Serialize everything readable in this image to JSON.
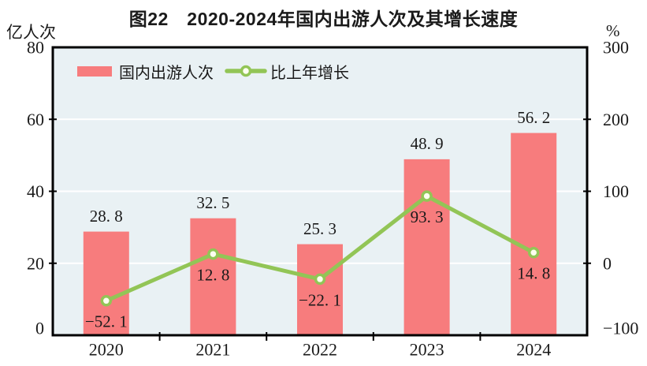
{
  "chart_data": {
    "type": "bar+line",
    "title": "图22　2020-2024年国内出游人次及其增长速度",
    "categories": [
      "2020",
      "2021",
      "2022",
      "2023",
      "2024"
    ],
    "series": [
      {
        "name": "国内出游人次",
        "type": "bar",
        "axis": "left",
        "values": [
          28.8,
          32.5,
          25.3,
          48.9,
          56.2
        ],
        "value_labels": [
          "28. 8",
          "32. 5",
          "25. 3",
          "48. 9",
          "56. 2"
        ],
        "color": "#F77C7D"
      },
      {
        "name": "比上年增长",
        "type": "line",
        "axis": "right",
        "values": [
          -52.1,
          12.8,
          -22.1,
          93.3,
          14.8
        ],
        "value_labels": [
          "−52. 1",
          "12. 8",
          "−22. 1",
          "93. 3",
          "14. 8"
        ],
        "color": "#92C556",
        "marker_fill": "#FDFFF0"
      }
    ],
    "left_axis": {
      "unit": "亿人次",
      "min": 0,
      "max": 80,
      "ticks": [
        0,
        20,
        40,
        60,
        80
      ],
      "tick_labels": [
        "0",
        "20",
        "40",
        "60",
        "80"
      ]
    },
    "right_axis": {
      "unit": "%",
      "min": -100,
      "max": 300,
      "ticks": [
        -100,
        0,
        100,
        200,
        300
      ],
      "tick_labels": [
        "−100",
        "0",
        "100",
        "200",
        "300"
      ]
    },
    "gridlines": {
      "left_values": [
        20,
        40,
        60
      ],
      "color": "#FFFFFF"
    },
    "plot_bg": "#E9F1F4",
    "border_color": "#000000",
    "text_color": "#1a1a1a",
    "legend_position": "top-left-inside"
  }
}
